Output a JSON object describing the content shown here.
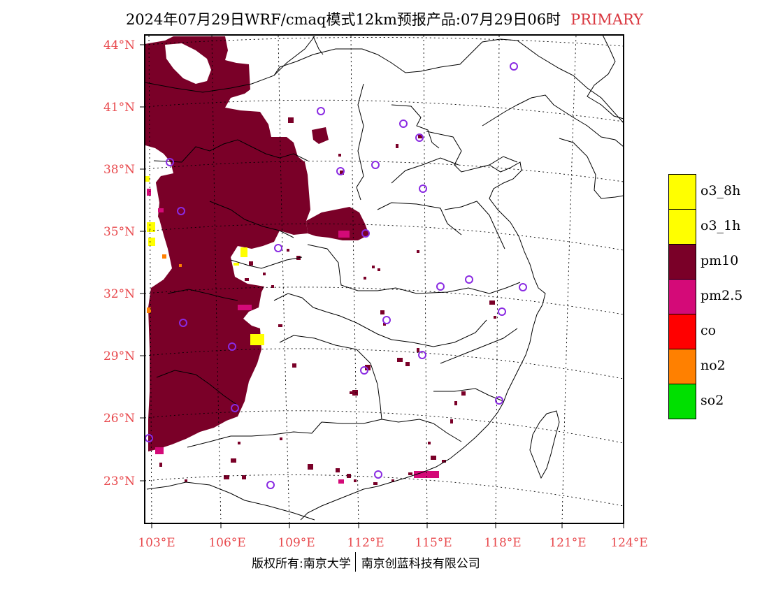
{
  "title": {
    "main": "2024年07月29日WRF/cmaq模式12km预报产品:07月29日06时",
    "mode": "PRIMARY"
  },
  "axes": {
    "lat_labels": [
      "44°N",
      "41°N",
      "38°N",
      "35°N",
      "32°N",
      "29°N",
      "26°N",
      "23°N"
    ],
    "lon_labels": [
      "103°E",
      "106°E",
      "109°E",
      "112°E",
      "115°E",
      "118°E",
      "121°E",
      "124°E"
    ],
    "lat_values": [
      44,
      41,
      38,
      35,
      32,
      29,
      26,
      23
    ],
    "lon_values": [
      103,
      106,
      109,
      112,
      115,
      118,
      121,
      124
    ],
    "label_color": "#e8484c",
    "grid": "dotted"
  },
  "legend": [
    {
      "label": "o3_8h",
      "color": "#ffff00"
    },
    {
      "label": "o3_1h",
      "color": "#ffff00"
    },
    {
      "label": "pm10",
      "color": "#7a0028"
    },
    {
      "label": "pm2.5",
      "color": "#d40a78"
    },
    {
      "label": "co",
      "color": "#ff0000"
    },
    {
      "label": "no2",
      "color": "#ff8000"
    },
    {
      "label": "so2",
      "color": "#00e000"
    }
  ],
  "footer": {
    "left": "版权所有:南京大学",
    "right": "南京创蓝科技有限公司"
  },
  "colors": {
    "primary_pollutant": "#7a0028",
    "city_marker": "#8a2be2"
  }
}
